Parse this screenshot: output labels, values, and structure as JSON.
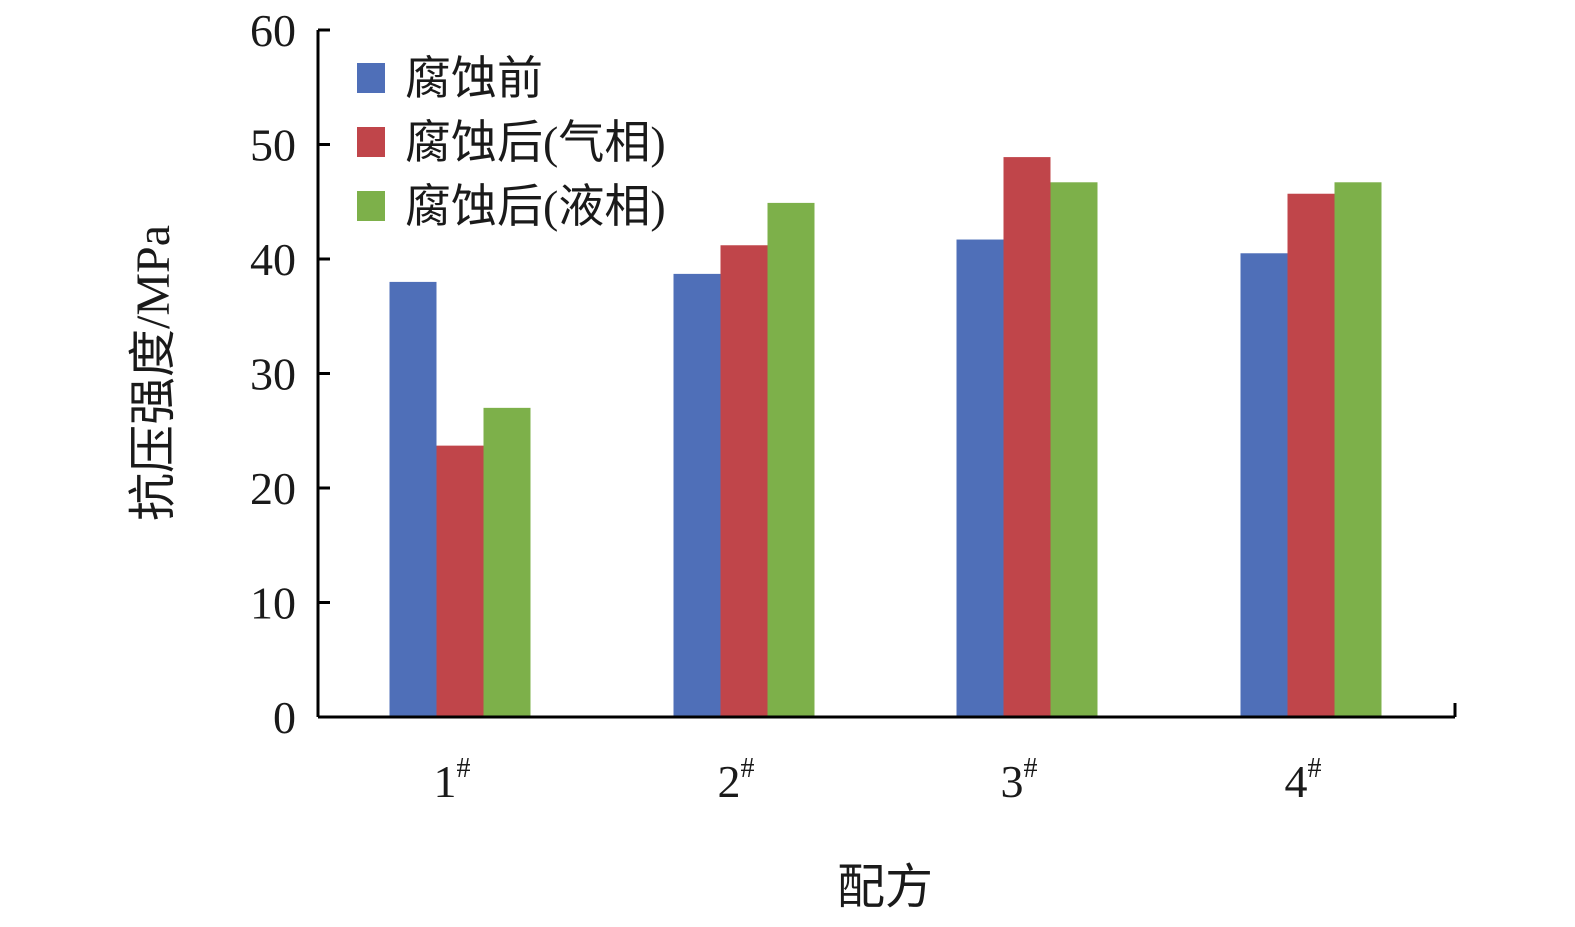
{
  "chart_data": {
    "type": "bar",
    "categories": [
      "1",
      "2",
      "3",
      "4"
    ],
    "category_suffix": "#",
    "series": [
      {
        "name": "腐蚀前",
        "color": "#4f6fb8",
        "values": [
          38.0,
          38.7,
          41.7,
          40.5
        ]
      },
      {
        "name": "腐蚀后(气相)",
        "color": "#c0454a",
        "values": [
          23.7,
          41.2,
          48.9,
          45.7
        ]
      },
      {
        "name": "腐蚀后(液相)",
        "color": "#7db04a",
        "values": [
          27.0,
          44.9,
          46.7,
          46.7
        ]
      }
    ],
    "xlabel": "配方",
    "ylabel": "抗压强度/MPa",
    "ylim": [
      0,
      60
    ],
    "yticks": [
      0,
      10,
      20,
      30,
      40,
      50,
      60
    ],
    "grid": false,
    "legend_position": "top-left"
  }
}
